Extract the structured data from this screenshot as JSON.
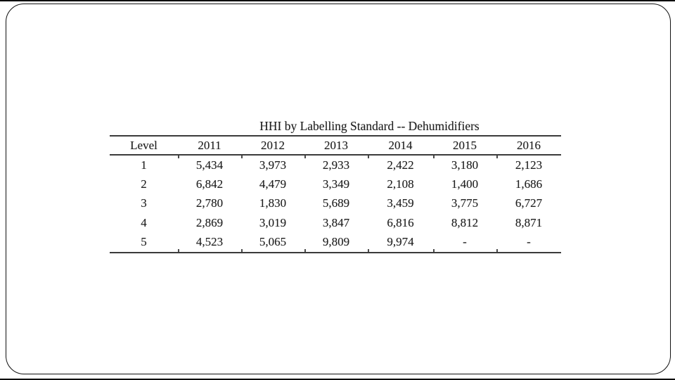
{
  "slide": {
    "background_color": "#ffffff",
    "frame_border_color": "#111111",
    "rule_color": "#3b3b3b",
    "text_color": "#1e1e1e"
  },
  "chart_data": {
    "type": "table",
    "title": "HHI by Labelling Standard -- Dehumidifiers",
    "columns": [
      "Level",
      "2011",
      "2012",
      "2013",
      "2014",
      "2015",
      "2016"
    ],
    "rows": [
      [
        "1",
        "5,434",
        "3,973",
        "2,933",
        "2,422",
        "3,180",
        "2,123"
      ],
      [
        "2",
        "6,842",
        "4,479",
        "3,349",
        "2,108",
        "1,400",
        "1,686"
      ],
      [
        "3",
        "2,780",
        "1,830",
        "5,689",
        "3,459",
        "3,775",
        "6,727"
      ],
      [
        "4",
        "2,869",
        "3,019",
        "3,847",
        "6,816",
        "8,812",
        "8,871"
      ],
      [
        "5",
        "4,523",
        "5,065",
        "9,809",
        "9,974",
        "-",
        "-"
      ]
    ],
    "notes": "No vertical gridlines in body; horizontal rules above header, below header, and below last row; '-' indicates no value for levels 5 in 2015 and 2016"
  }
}
